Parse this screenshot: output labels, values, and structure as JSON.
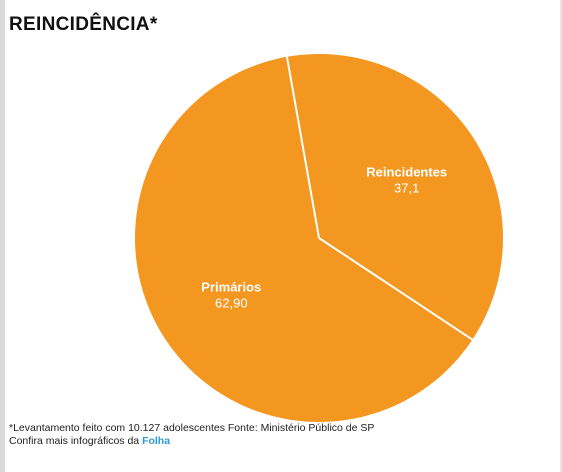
{
  "title": "REINCIDÊNCIA*",
  "chart_data": {
    "type": "pie",
    "title": "REINCIDÊNCIA*",
    "slices": [
      {
        "name": "Reincidentes",
        "value": 37.1,
        "value_label": "37,1"
      },
      {
        "name": "Primários",
        "value": 62.9,
        "value_label": "62,90"
      }
    ],
    "colors": {
      "slice": "#f39720",
      "separator": "#ffffff"
    }
  },
  "footnote": "*Levantamento feito com 10.127 adolescentes Fonte: Ministério Público de SP",
  "credit": {
    "prefix": "Confira mais infográficos da ",
    "link_label": "Folha"
  }
}
